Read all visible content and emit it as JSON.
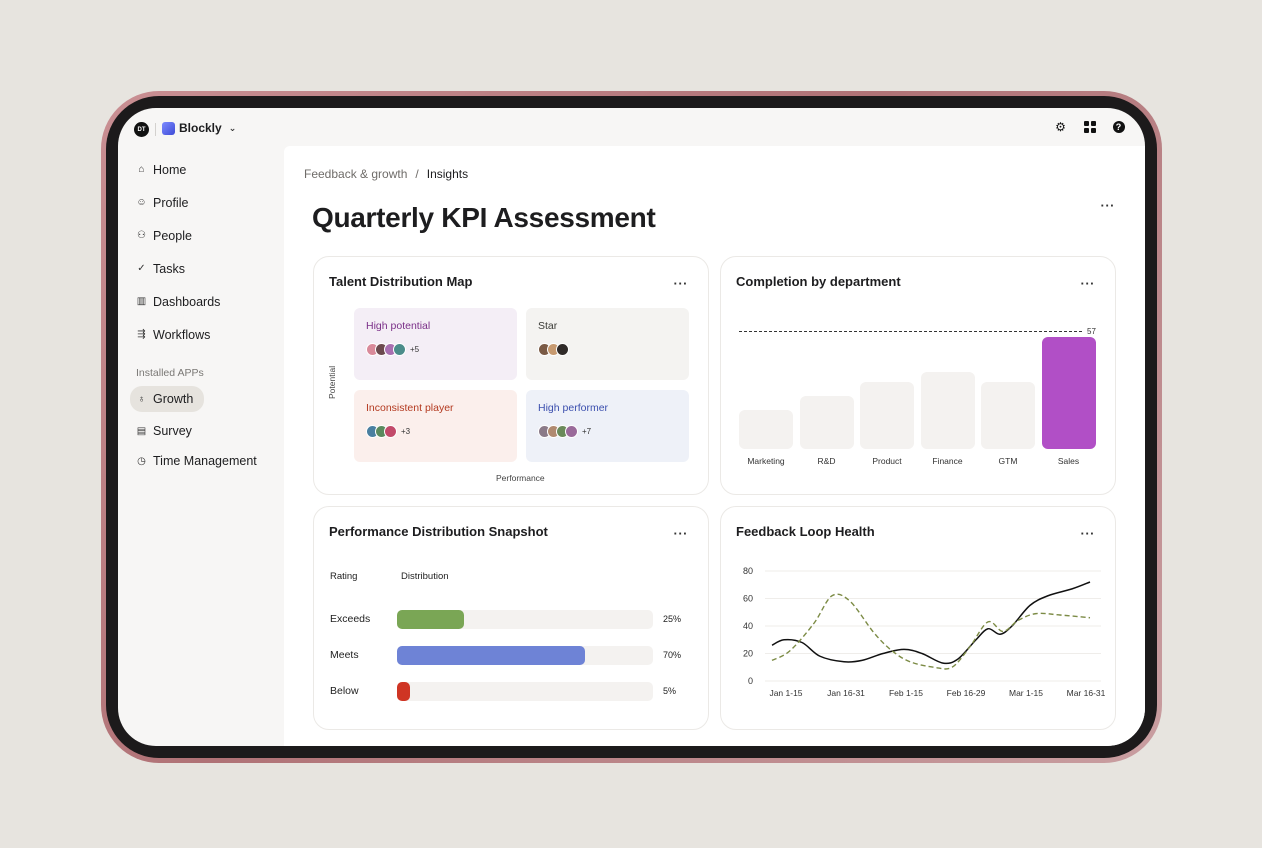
{
  "workspace": {
    "badge": "DT",
    "brand": "Blockly",
    "chevron": "⌄"
  },
  "colors": {
    "accent": "#b14fc6",
    "exceeds": "#7aa655",
    "meets": "#6e83d6",
    "below": "#cf3524"
  },
  "sidebar": {
    "items": [
      {
        "label": "Home",
        "icon": "home-icon"
      },
      {
        "label": "Profile",
        "icon": "smile-icon"
      },
      {
        "label": "People",
        "icon": "people-icon"
      },
      {
        "label": "Tasks",
        "icon": "check-circle-icon"
      },
      {
        "label": "Dashboards",
        "icon": "bar-chart-icon"
      },
      {
        "label": "Workflows",
        "icon": "workflow-icon"
      }
    ],
    "section_label": "Installed APPs",
    "apps": [
      {
        "label": "Growth",
        "icon": "award-icon",
        "active": true
      },
      {
        "label": "Survey",
        "icon": "clipboard-icon"
      },
      {
        "label": "Time Management",
        "icon": "timer-icon"
      }
    ]
  },
  "breadcrumb": {
    "parent": "Feedback & growth",
    "separator": "/",
    "current": "Insights"
  },
  "page": {
    "title": "Quarterly KPI Assessment",
    "more": "···"
  },
  "talent_map": {
    "title": "Talent Distribution Map",
    "more": "···",
    "y_label": "Potential",
    "x_label": "Performance",
    "quadrants": [
      {
        "label": "High potential",
        "extra": "+5",
        "label_color": "#7a2f88",
        "bg": "#f4eef6"
      },
      {
        "label": "Star",
        "extra": "",
        "label_color": "#3a3a36",
        "bg": "#f4f3f1"
      },
      {
        "label": "Inconsistent player",
        "extra": "+3",
        "label_color": "#b3391f",
        "bg": "#fbefec"
      },
      {
        "label": "High performer",
        "extra": "+7",
        "label_color": "#3b4fae",
        "bg": "#eef1f8"
      }
    ]
  },
  "completion": {
    "title": "Completion by department",
    "more": "···",
    "target_label": "57"
  },
  "performance": {
    "title": "Performance Distribution Snapshot",
    "more": "···",
    "col_rating": "Rating",
    "col_distribution": "Distribution",
    "rows": [
      {
        "label": "Exceeds",
        "value_label": "25%"
      },
      {
        "label": "Meets",
        "value_label": "70%"
      },
      {
        "label": "Below",
        "value_label": "5%"
      }
    ]
  },
  "feedback": {
    "title": "Feedback Loop Health",
    "more": "···"
  },
  "chart_data": [
    {
      "type": "bar",
      "title": "Completion by department",
      "categories": [
        "Marketing",
        "R&D",
        "Product",
        "Finance",
        "GTM",
        "Sales"
      ],
      "values": [
        19,
        26,
        33,
        38,
        33,
        55
      ],
      "reference_line": 57,
      "highlight": "Sales",
      "ylim": [
        0,
        60
      ]
    },
    {
      "type": "bar",
      "title": "Performance Distribution Snapshot",
      "categories": [
        "Exceeds",
        "Meets",
        "Below"
      ],
      "values": [
        25,
        70,
        5
      ],
      "orientation": "horizontal"
    },
    {
      "type": "line",
      "title": "Feedback Loop Health",
      "categories": [
        "Jan 1-15",
        "Jan 16-31",
        "Feb 1-15",
        "Feb 16-29",
        "Mar 1-15",
        "Mar 16-31"
      ],
      "yticks": [
        0,
        20,
        40,
        60,
        80
      ],
      "ylim": [
        0,
        80
      ],
      "grid": true,
      "series": [
        {
          "style": "solid",
          "color": "#111111",
          "x": [
            0,
            0.2,
            0.5,
            0.8,
            1.2,
            1.5,
            1.85,
            2.2,
            2.5,
            2.85,
            3.1,
            3.4,
            3.6,
            3.8,
            4.0,
            4.3,
            4.6,
            5.0,
            5.3
          ],
          "y": [
            26,
            30,
            28,
            18,
            14,
            15,
            20,
            23,
            20,
            13,
            16,
            30,
            38,
            34,
            40,
            55,
            62,
            67,
            72
          ]
        },
        {
          "style": "dashed",
          "color": "#7c8b45",
          "x": [
            0,
            0.3,
            0.7,
            1.0,
            1.3,
            1.7,
            2.0,
            2.3,
            2.7,
            3.0,
            3.3,
            3.6,
            3.85,
            4.1,
            4.4,
            4.8,
            5.3
          ],
          "y": [
            15,
            22,
            42,
            62,
            58,
            35,
            22,
            14,
            10,
            10,
            25,
            43,
            36,
            44,
            49,
            48,
            46
          ]
        }
      ]
    }
  ]
}
